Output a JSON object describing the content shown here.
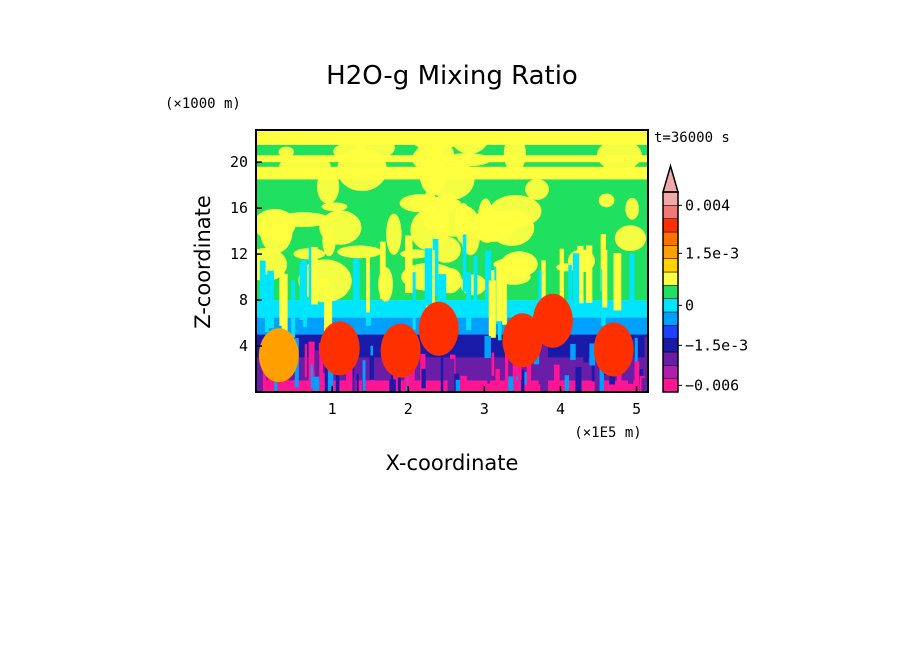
{
  "chart_data": {
    "type": "heatmap",
    "title": "H2O-g Mixing Ratio",
    "xlabel": "X-coordinate",
    "ylabel": "Z-coordinate",
    "x_unit": "(×1E5 m)",
    "y_unit": "(×1000 m)",
    "time_label": "t=36000 s",
    "xlim": [
      0,
      5.15
    ],
    "ylim": [
      0,
      22.8
    ],
    "xticks": [
      1,
      2,
      3,
      4,
      5
    ],
    "yticks": [
      4,
      8,
      12,
      16,
      20
    ],
    "colorbar": {
      "labels": [
        "0.004",
        "1.5e-3",
        "0",
        "−1.5e-3",
        "−0.006"
      ],
      "label_values": [
        0.004,
        0.0015,
        0,
        -0.0015,
        -0.006
      ],
      "colors": [
        "#ff1493",
        "#b01eb0",
        "#6a1ea8",
        "#1a1aa8",
        "#1e40ff",
        "#00a0ff",
        "#00e5ff",
        "#20e060",
        "#ffff40",
        "#ffd200",
        "#ffa000",
        "#ff7000",
        "#ff3000",
        "#f07878",
        "#f0a8a8"
      ]
    },
    "field_bands": [
      {
        "z_range": [
          0,
          1
        ],
        "value": -0.006
      },
      {
        "z_range": [
          1,
          3
        ],
        "value": -0.003
      },
      {
        "z_range": [
          3,
          5
        ],
        "value": -0.0015
      },
      {
        "z_range": [
          5,
          6.5
        ],
        "value": -0.0005
      },
      {
        "z_range": [
          6.5,
          8
        ],
        "value": 0
      },
      {
        "z_range": [
          8,
          22.8
        ],
        "value": 0.0005
      }
    ],
    "high_anomaly_cores": [
      {
        "x": 0.3,
        "z": 3.2,
        "value": 0.0015
      },
      {
        "x": 1.1,
        "z": 3.8,
        "value": 0.003
      },
      {
        "x": 1.9,
        "z": 3.6,
        "value": 0.003
      },
      {
        "x": 2.4,
        "z": 5.5,
        "value": 0.003
      },
      {
        "x": 3.5,
        "z": 4.5,
        "value": 0.003
      },
      {
        "x": 3.9,
        "z": 6.2,
        "value": 0.003
      },
      {
        "x": 4.7,
        "z": 3.7,
        "value": 0.003
      }
    ]
  }
}
